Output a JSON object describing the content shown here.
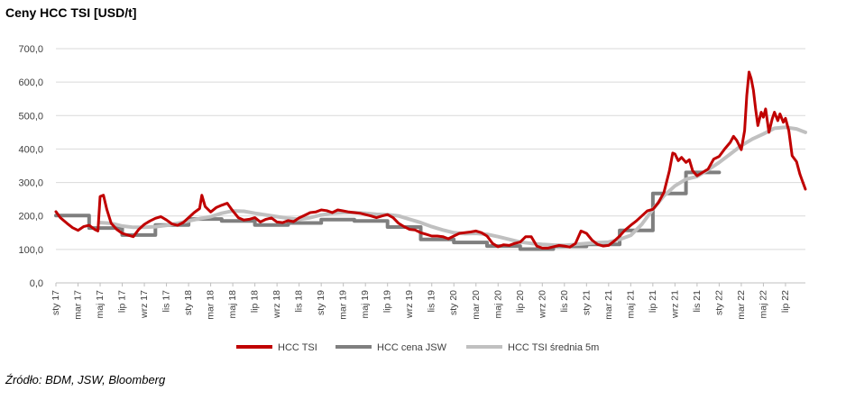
{
  "title": "Ceny HCC TSI [USD/t]",
  "source": "Źródło: BDM, JSW, Bloomberg",
  "chart_data": {
    "type": "line",
    "ylim": [
      0,
      700
    ],
    "yticks": [
      "0,0",
      "100,0",
      "200,0",
      "300,0",
      "400,0",
      "500,0",
      "600,0",
      "700,0"
    ],
    "xlim": [
      0,
      66
    ],
    "x_tick_labels": [
      "sty 17",
      "mar 17",
      "maj 17",
      "lip 17",
      "wrz 17",
      "lis 17",
      "sty 18",
      "mar 18",
      "maj 18",
      "lip 18",
      "wrz 18",
      "lis 18",
      "sty 19",
      "mar 19",
      "maj 19",
      "lip 19",
      "wrz 19",
      "lis 19",
      "sty 20",
      "mar 20",
      "maj 20",
      "lip 20",
      "wrz 20",
      "lis 20",
      "sty 21",
      "mar 21",
      "maj 21",
      "lip 21",
      "wrz 21",
      "lis 21",
      "sty 22",
      "mar 22",
      "maj 22",
      "lip 22"
    ],
    "legend_position": "bottom",
    "series": [
      {
        "name": "HCC TSI",
        "color": "#c00000",
        "points": [
          [
            0,
            213
          ],
          [
            0.4,
            195
          ],
          [
            1,
            178
          ],
          [
            1.5,
            165
          ],
          [
            2,
            157
          ],
          [
            2.5,
            168
          ],
          [
            3,
            172
          ],
          [
            3.5,
            160
          ],
          [
            3.8,
            155
          ],
          [
            4,
            258
          ],
          [
            4.3,
            262
          ],
          [
            4.6,
            220
          ],
          [
            5,
            178
          ],
          [
            5.5,
            160
          ],
          [
            6,
            148
          ],
          [
            6.5,
            143
          ],
          [
            7,
            138
          ],
          [
            7.5,
            160
          ],
          [
            8,
            175
          ],
          [
            8.5,
            185
          ],
          [
            9,
            193
          ],
          [
            9.5,
            198
          ],
          [
            10,
            188
          ],
          [
            10.5,
            176
          ],
          [
            11,
            172
          ],
          [
            11.5,
            180
          ],
          [
            12,
            195
          ],
          [
            12.5,
            210
          ],
          [
            13,
            222
          ],
          [
            13.2,
            262
          ],
          [
            13.5,
            228
          ],
          [
            14,
            212
          ],
          [
            14.5,
            225
          ],
          [
            15,
            232
          ],
          [
            15.5,
            238
          ],
          [
            16,
            215
          ],
          [
            16.5,
            195
          ],
          [
            17,
            188
          ],
          [
            17.5,
            190
          ],
          [
            18,
            195
          ],
          [
            18.5,
            182
          ],
          [
            19,
            190
          ],
          [
            19.5,
            194
          ],
          [
            20,
            182
          ],
          [
            20.5,
            180
          ],
          [
            21,
            186
          ],
          [
            21.5,
            183
          ],
          [
            22,
            194
          ],
          [
            22.5,
            202
          ],
          [
            23,
            210
          ],
          [
            23.5,
            212
          ],
          [
            24,
            218
          ],
          [
            24.5,
            216
          ],
          [
            25,
            210
          ],
          [
            25.5,
            218
          ],
          [
            26,
            215
          ],
          [
            26.5,
            212
          ],
          [
            27,
            210
          ],
          [
            27.5,
            208
          ],
          [
            28,
            204
          ],
          [
            28.5,
            200
          ],
          [
            29,
            195
          ],
          [
            29.5,
            200
          ],
          [
            30,
            204
          ],
          [
            30.5,
            195
          ],
          [
            31,
            178
          ],
          [
            31.5,
            168
          ],
          [
            32,
            160
          ],
          [
            32.5,
            158
          ],
          [
            33,
            150
          ],
          [
            33.5,
            145
          ],
          [
            34,
            140
          ],
          [
            34.5,
            140
          ],
          [
            35,
            138
          ],
          [
            35.5,
            132
          ],
          [
            36,
            140
          ],
          [
            36.5,
            148
          ],
          [
            37,
            150
          ],
          [
            37.5,
            152
          ],
          [
            38,
            155
          ],
          [
            38.5,
            150
          ],
          [
            39,
            140
          ],
          [
            39.5,
            118
          ],
          [
            40,
            108
          ],
          [
            40.5,
            114
          ],
          [
            41,
            112
          ],
          [
            41.5,
            118
          ],
          [
            42,
            122
          ],
          [
            42.5,
            138
          ],
          [
            43,
            138
          ],
          [
            43.5,
            110
          ],
          [
            44,
            104
          ],
          [
            44.5,
            104
          ],
          [
            45,
            108
          ],
          [
            45.5,
            112
          ],
          [
            46,
            110
          ],
          [
            46.5,
            107
          ],
          [
            47,
            118
          ],
          [
            47.5,
            155
          ],
          [
            48,
            148
          ],
          [
            48.5,
            128
          ],
          [
            49,
            115
          ],
          [
            49.5,
            110
          ],
          [
            50,
            112
          ],
          [
            50.5,
            125
          ],
          [
            51,
            140
          ],
          [
            51.5,
            158
          ],
          [
            52,
            172
          ],
          [
            52.5,
            185
          ],
          [
            53,
            200
          ],
          [
            53.5,
            215
          ],
          [
            54,
            220
          ],
          [
            54.5,
            240
          ],
          [
            55,
            270
          ],
          [
            55.5,
            335
          ],
          [
            55.8,
            388
          ],
          [
            56,
            385
          ],
          [
            56.3,
            365
          ],
          [
            56.6,
            375
          ],
          [
            57,
            360
          ],
          [
            57.3,
            368
          ],
          [
            57.6,
            335
          ],
          [
            58,
            320
          ],
          [
            58.5,
            330
          ],
          [
            59,
            340
          ],
          [
            59.5,
            370
          ],
          [
            60,
            378
          ],
          [
            60.5,
            400
          ],
          [
            61,
            420
          ],
          [
            61.3,
            438
          ],
          [
            61.6,
            425
          ],
          [
            62,
            398
          ],
          [
            62.3,
            455
          ],
          [
            62.5,
            560
          ],
          [
            62.7,
            630
          ],
          [
            62.9,
            610
          ],
          [
            63.1,
            575
          ],
          [
            63.3,
            520
          ],
          [
            63.5,
            470
          ],
          [
            63.8,
            510
          ],
          [
            64,
            495
          ],
          [
            64.2,
            520
          ],
          [
            64.5,
            450
          ],
          [
            64.8,
            490
          ],
          [
            65,
            510
          ],
          [
            65.3,
            485
          ],
          [
            65.5,
            505
          ],
          [
            65.8,
            480
          ],
          [
            66,
            492
          ],
          [
            66.3,
            455
          ],
          [
            66.6,
            380
          ],
          [
            67,
            362
          ],
          [
            67.3,
            325
          ],
          [
            67.6,
            298
          ],
          [
            67.8,
            280
          ]
        ]
      },
      {
        "name": "HCC cena JSW",
        "color": "#7f7f7f",
        "points": [
          [
            0,
            201
          ],
          [
            3,
            201
          ],
          [
            3,
            164
          ],
          [
            6,
            164
          ],
          [
            6,
            143
          ],
          [
            9,
            143
          ],
          [
            9,
            173
          ],
          [
            12,
            173
          ],
          [
            12,
            191
          ],
          [
            15,
            191
          ],
          [
            15,
            185
          ],
          [
            18,
            185
          ],
          [
            18,
            173
          ],
          [
            21,
            173
          ],
          [
            21,
            179
          ],
          [
            24,
            179
          ],
          [
            24,
            189
          ],
          [
            27,
            189
          ],
          [
            27,
            185
          ],
          [
            30,
            185
          ],
          [
            30,
            167
          ],
          [
            33,
            167
          ],
          [
            33,
            130
          ],
          [
            36,
            130
          ],
          [
            36,
            121
          ],
          [
            39,
            121
          ],
          [
            39,
            110
          ],
          [
            42,
            110
          ],
          [
            42,
            101
          ],
          [
            45,
            101
          ],
          [
            45,
            109
          ],
          [
            48,
            109
          ],
          [
            48,
            115
          ],
          [
            51,
            115
          ],
          [
            51,
            157
          ],
          [
            54,
            157
          ],
          [
            54,
            267
          ],
          [
            57,
            267
          ],
          [
            57,
            330
          ],
          [
            60,
            330
          ]
        ]
      },
      {
        "name": "HCC TSI średnia 5m",
        "color": "#c0c0c0",
        "points": [
          [
            4,
            180
          ],
          [
            5,
            178
          ],
          [
            6,
            170
          ],
          [
            7,
            166
          ],
          [
            8,
            166
          ],
          [
            9,
            168
          ],
          [
            10,
            172
          ],
          [
            11,
            178
          ],
          [
            12,
            185
          ],
          [
            13,
            192
          ],
          [
            14,
            198
          ],
          [
            15,
            208
          ],
          [
            16,
            215
          ],
          [
            17,
            214
          ],
          [
            18,
            208
          ],
          [
            19,
            203
          ],
          [
            20,
            198
          ],
          [
            21,
            193
          ],
          [
            22,
            190
          ],
          [
            23,
            195
          ],
          [
            24,
            203
          ],
          [
            25,
            208
          ],
          [
            26,
            210
          ],
          [
            27,
            210
          ],
          [
            28,
            208
          ],
          [
            29,
            205
          ],
          [
            30,
            204
          ],
          [
            31,
            200
          ],
          [
            32,
            190
          ],
          [
            33,
            180
          ],
          [
            34,
            168
          ],
          [
            35,
            158
          ],
          [
            36,
            150
          ],
          [
            37,
            147
          ],
          [
            38,
            148
          ],
          [
            39,
            145
          ],
          [
            40,
            138
          ],
          [
            41,
            130
          ],
          [
            42,
            122
          ],
          [
            43,
            118
          ],
          [
            44,
            115
          ],
          [
            45,
            113
          ],
          [
            46,
            112
          ],
          [
            47,
            115
          ],
          [
            48,
            118
          ],
          [
            49,
            120
          ],
          [
            50,
            122
          ],
          [
            51,
            130
          ],
          [
            52,
            142
          ],
          [
            53,
            175
          ],
          [
            54,
            220
          ],
          [
            55,
            260
          ],
          [
            56,
            290
          ],
          [
            57,
            310
          ],
          [
            58,
            318
          ],
          [
            59,
            338
          ],
          [
            60,
            360
          ],
          [
            61,
            385
          ],
          [
            62,
            410
          ],
          [
            63,
            430
          ],
          [
            64,
            445
          ],
          [
            65,
            462
          ],
          [
            66,
            465
          ],
          [
            67,
            460
          ],
          [
            67.8,
            450
          ]
        ]
      }
    ]
  }
}
